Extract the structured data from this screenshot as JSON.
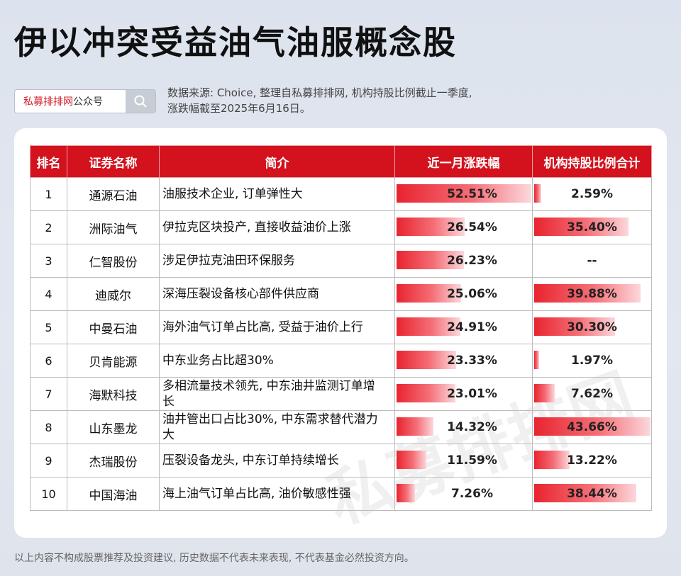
{
  "header": {
    "title": "伊以冲突受益油气油服概念股",
    "search_brand": "私募排排网",
    "search_suffix": "公众号",
    "source_line1": "数据来源: Choice, 整理自私募排排网, 机构持股比例截止一季度,",
    "source_line2": "涨跌幅截至2025年6月16日。"
  },
  "table": {
    "headers": [
      "排名",
      "证券名称",
      "简介",
      "近一月涨跌幅",
      "机构持股比例合计"
    ]
  },
  "chart_data": {
    "type": "table",
    "columns": [
      "排名",
      "证券名称",
      "简介",
      "近一月涨跌幅",
      "机构持股比例合计"
    ],
    "rows": [
      {
        "rank": "1",
        "name": "通源石油",
        "desc": "油服技术企业, 订单弹性大",
        "change": "52.51%",
        "change_value": 52.51,
        "inst": "2.59%",
        "inst_value": 2.59
      },
      {
        "rank": "2",
        "name": "洲际油气",
        "desc": "伊拉克区块投产, 直接收益油价上涨",
        "change": "26.54%",
        "change_value": 26.54,
        "inst": "35.40%",
        "inst_value": 35.4
      },
      {
        "rank": "3",
        "name": "仁智股份",
        "desc": "涉足伊拉克油田环保服务",
        "change": "26.23%",
        "change_value": 26.23,
        "inst": "--",
        "inst_value": null
      },
      {
        "rank": "4",
        "name": "迪威尔",
        "desc": "深海压裂设备核心部件供应商",
        "change": "25.06%",
        "change_value": 25.06,
        "inst": "39.88%",
        "inst_value": 39.88
      },
      {
        "rank": "5",
        "name": "中曼石油",
        "desc": "海外油气订单占比高, 受益于油价上行",
        "change": "24.91%",
        "change_value": 24.91,
        "inst": "30.30%",
        "inst_value": 30.3
      },
      {
        "rank": "6",
        "name": "贝肯能源",
        "desc": "中东业务占比超30%",
        "change": "23.33%",
        "change_value": 23.33,
        "inst": "1.97%",
        "inst_value": 1.97
      },
      {
        "rank": "7",
        "name": "海默科技",
        "desc": "多相流量技术领先, 中东油井监测订单增长",
        "change": "23.01%",
        "change_value": 23.01,
        "inst": "7.62%",
        "inst_value": 7.62
      },
      {
        "rank": "8",
        "name": "山东墨龙",
        "desc": "油井管出口占比30%, 中东需求替代潜力大",
        "change": "14.32%",
        "change_value": 14.32,
        "inst": "43.66%",
        "inst_value": 43.66
      },
      {
        "rank": "9",
        "name": "杰瑞股份",
        "desc": "压裂设备龙头, 中东订单持续增长",
        "change": "11.59%",
        "change_value": 11.59,
        "inst": "13.22%",
        "inst_value": 13.22
      },
      {
        "rank": "10",
        "name": "中国海油",
        "desc": "海上油气订单占比高, 油价敏感性强",
        "change": "7.26%",
        "change_value": 7.26,
        "inst": "38.44%",
        "inst_value": 38.44
      }
    ]
  },
  "colors": {
    "header_red": "#d3121d",
    "bar_red": "#e8242f"
  },
  "footer": {
    "disclaimer": "以上内容不构成股票推荐及投资建议, 历史数据不代表未来表现, 不代表基金必然投资方向。"
  }
}
